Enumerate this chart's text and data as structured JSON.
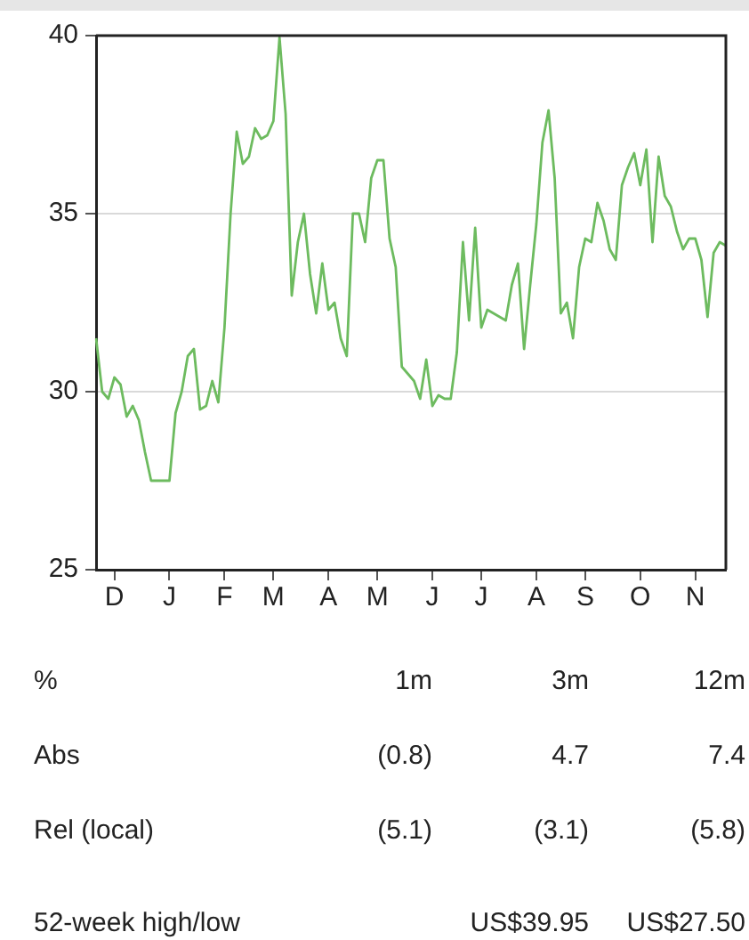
{
  "chart_data": {
    "type": "line",
    "tick_labels": "xy",
    "grid": "y",
    "ylim": [
      25,
      40
    ],
    "yticks": [
      25,
      30,
      35,
      40
    ],
    "categories": [
      null,
      null,
      null,
      "D",
      null,
      null,
      null,
      null,
      null,
      null,
      null,
      null,
      "J",
      null,
      null,
      null,
      null,
      null,
      null,
      null,
      null,
      "F",
      null,
      null,
      null,
      null,
      null,
      null,
      null,
      "M",
      null,
      null,
      null,
      null,
      null,
      null,
      null,
      null,
      "A",
      null,
      null,
      null,
      null,
      null,
      null,
      null,
      "M",
      null,
      null,
      null,
      null,
      null,
      null,
      null,
      null,
      "J",
      null,
      null,
      null,
      null,
      null,
      null,
      null,
      "J",
      null,
      null,
      null,
      null,
      null,
      null,
      null,
      null,
      "A",
      null,
      null,
      null,
      null,
      null,
      null,
      null,
      "S",
      null,
      null,
      null,
      null,
      null,
      null,
      null,
      null,
      "O",
      null,
      null,
      null,
      null,
      null,
      null,
      null,
      null,
      "N",
      null,
      null,
      null,
      null,
      null
    ],
    "series": [
      {
        "color": "#6dbb5f",
        "values": [
          31.5,
          30.0,
          29.8,
          30.4,
          30.2,
          29.3,
          29.6,
          29.2,
          28.3,
          27.5,
          27.5,
          27.5,
          27.5,
          29.4,
          30.0,
          31.0,
          31.2,
          29.5,
          29.6,
          30.3,
          29.7,
          31.8,
          35.0,
          37.3,
          36.4,
          36.6,
          37.4,
          37.1,
          37.2,
          37.6,
          39.95,
          37.8,
          32.7,
          34.2,
          35.0,
          33.3,
          32.2,
          33.6,
          32.3,
          32.5,
          31.5,
          31.0,
          35.0,
          35.0,
          34.2,
          36.0,
          36.5,
          36.5,
          34.3,
          33.5,
          30.7,
          30.5,
          30.3,
          29.8,
          30.9,
          29.6,
          29.9,
          29.8,
          29.8,
          31.1,
          34.2,
          32.0,
          34.6,
          31.8,
          32.3,
          32.2,
          32.1,
          32.0,
          33.0,
          33.6,
          31.2,
          33.0,
          34.7,
          37.0,
          37.9,
          36.0,
          32.2,
          32.5,
          31.5,
          33.5,
          34.3,
          34.2,
          35.3,
          34.8,
          34.0,
          33.7,
          35.8,
          36.3,
          36.7,
          35.8,
          36.8,
          34.2,
          36.6,
          35.5,
          35.2,
          34.5,
          34.0,
          34.3,
          34.3,
          33.7,
          32.1,
          33.9,
          34.2,
          34.1
        ]
      }
    ],
    "annotations": [
      "%",
      "1m",
      "3m",
      "12m",
      "Abs",
      "(0.8)",
      "4.7",
      "7.4",
      "Rel (local)",
      "(5.1)",
      "(3.1)",
      "(5.8)",
      "52-week high/low",
      "US$39.95",
      "US$27.50"
    ]
  }
}
